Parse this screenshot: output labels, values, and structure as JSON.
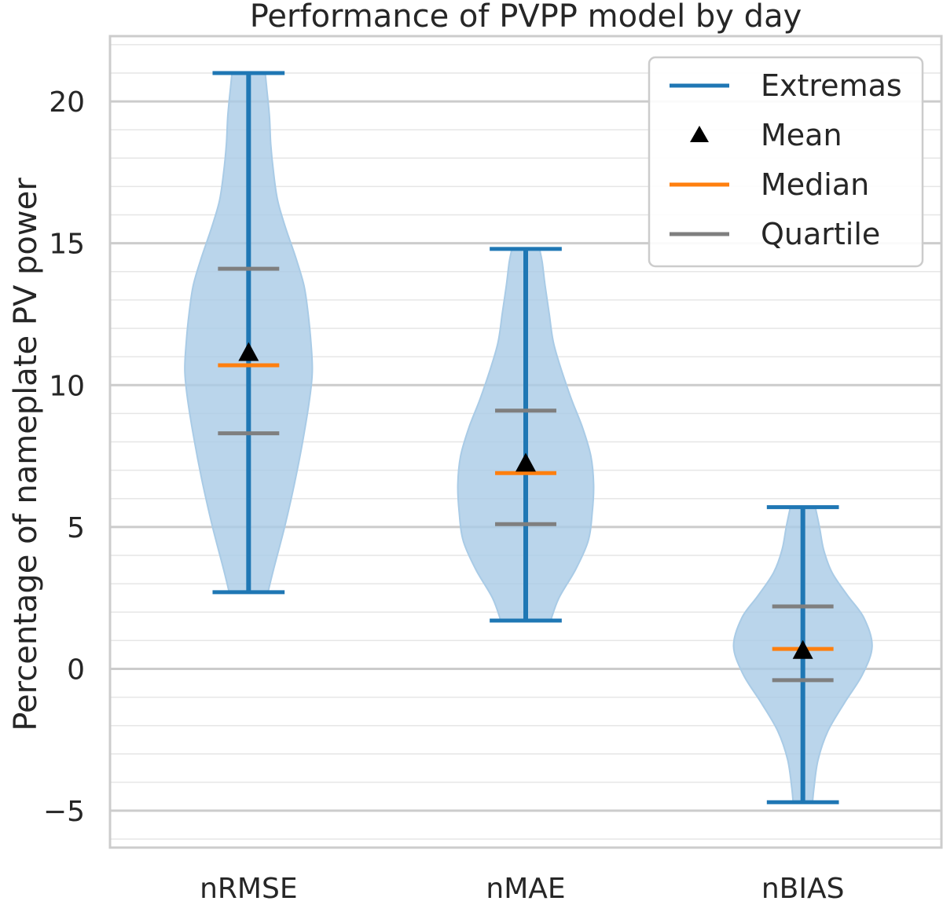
{
  "chart_data": {
    "type": "violin",
    "title": "Performance of PVPP model by day",
    "xlabel": "",
    "ylabel": "Percentage of nameplate PV power",
    "categories": [
      "nRMSE",
      "nMAE",
      "nBIAS"
    ],
    "ylim": [
      -6.3,
      22.3
    ],
    "yticks": [
      -5,
      0,
      5,
      10,
      15,
      20
    ],
    "ytick_labels": [
      "−5",
      "0",
      "5",
      "10",
      "15",
      "20"
    ],
    "grid": "on (major and minor horizontal)",
    "legend_position": "top-right",
    "legend": [
      {
        "label": "Extremas",
        "key": "extremas"
      },
      {
        "label": "Mean",
        "key": "mean"
      },
      {
        "label": "Median",
        "key": "median"
      },
      {
        "label": "Quartile",
        "key": "quartile"
      }
    ],
    "series": [
      {
        "category": "nRMSE",
        "min": 2.7,
        "max": 21.0,
        "mean": 11.1,
        "median": 10.7,
        "q1": 8.3,
        "q3": 14.1,
        "density": [
          [
            2.7,
            0.14
          ],
          [
            3.5,
            0.18
          ],
          [
            5,
            0.26
          ],
          [
            6.5,
            0.33
          ],
          [
            8,
            0.39
          ],
          [
            9.5,
            0.44
          ],
          [
            10.5,
            0.46
          ],
          [
            11.5,
            0.45
          ],
          [
            12.5,
            0.43
          ],
          [
            13.5,
            0.4
          ],
          [
            14.5,
            0.34
          ],
          [
            15.5,
            0.27
          ],
          [
            16.5,
            0.21
          ],
          [
            17.5,
            0.18
          ],
          [
            18.5,
            0.16
          ],
          [
            19.5,
            0.15
          ],
          [
            20.5,
            0.13
          ],
          [
            21.0,
            0.12
          ]
        ]
      },
      {
        "category": "nMAE",
        "min": 1.7,
        "max": 14.8,
        "mean": 7.2,
        "median": 6.9,
        "q1": 5.1,
        "q3": 9.1,
        "density": [
          [
            1.7,
            0.18
          ],
          [
            2.5,
            0.24
          ],
          [
            3.5,
            0.36
          ],
          [
            4.5,
            0.45
          ],
          [
            5.5,
            0.48
          ],
          [
            6.5,
            0.49
          ],
          [
            7.5,
            0.47
          ],
          [
            8.5,
            0.41
          ],
          [
            9.5,
            0.33
          ],
          [
            10.5,
            0.26
          ],
          [
            11.5,
            0.2
          ],
          [
            12.5,
            0.17
          ],
          [
            13.5,
            0.14
          ],
          [
            14.3,
            0.12
          ],
          [
            14.8,
            0.1
          ]
        ]
      },
      {
        "category": "nBIAS",
        "min": -4.7,
        "max": 5.7,
        "mean": 0.6,
        "median": 0.7,
        "q1": -0.4,
        "q3": 2.2,
        "density": [
          [
            -4.7,
            0.07
          ],
          [
            -4.2,
            0.08
          ],
          [
            -3.2,
            0.11
          ],
          [
            -2.2,
            0.18
          ],
          [
            -1.2,
            0.3
          ],
          [
            -0.2,
            0.43
          ],
          [
            0.8,
            0.5
          ],
          [
            1.8,
            0.44
          ],
          [
            2.6,
            0.32
          ],
          [
            3.4,
            0.21
          ],
          [
            4.2,
            0.15
          ],
          [
            5.0,
            0.12
          ],
          [
            5.7,
            0.09
          ]
        ]
      }
    ],
    "colors": {
      "extremas": "#1f77b4",
      "mean": "#000000",
      "median": "#ff7f0e",
      "quartile": "#7f7f7f",
      "violin_fill": "#a9cbe6",
      "grid": "#cccccc",
      "minor_grid": "#e6e6e6",
      "axes_edge": "#cccccc"
    }
  }
}
